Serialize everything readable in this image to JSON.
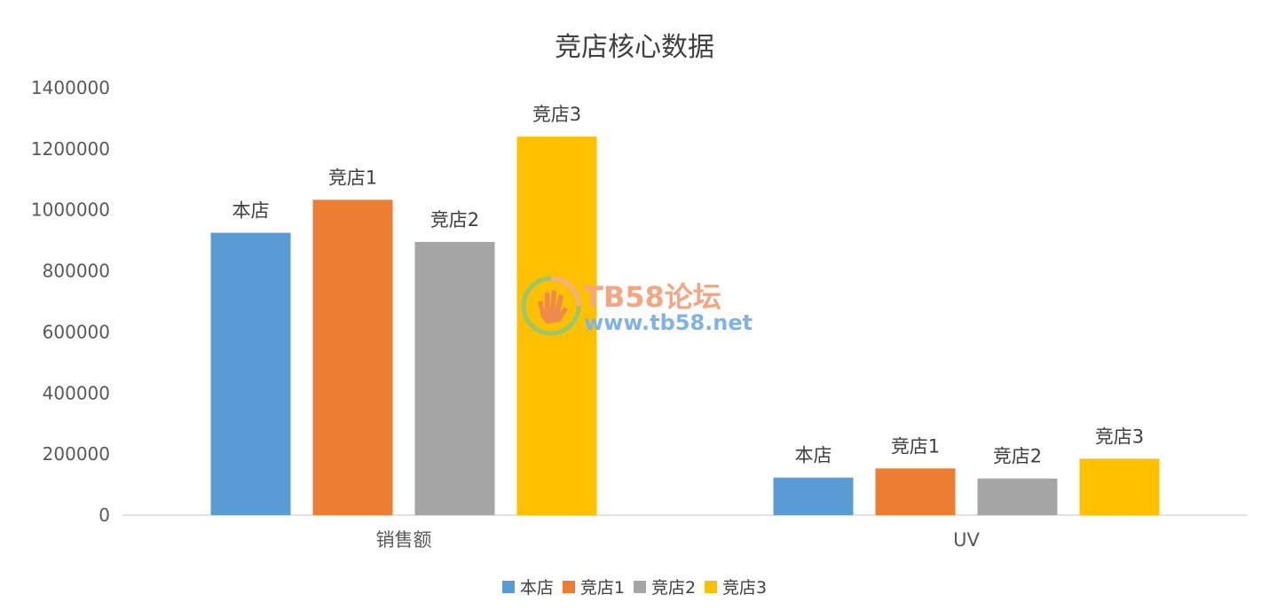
{
  "chart_data": {
    "type": "bar",
    "title": "竞店核心数据",
    "categories": [
      "销售额",
      "UV"
    ],
    "series": [
      {
        "name": "本店",
        "values": [
          925000,
          123000
        ],
        "color": "#5b9bd5"
      },
      {
        "name": "竞店1",
        "values": [
          1033000,
          153000
        ],
        "color": "#ed7d31"
      },
      {
        "name": "竞店2",
        "values": [
          895000,
          120000
        ],
        "color": "#a5a5a5"
      },
      {
        "name": "竞店3",
        "values": [
          1240000,
          185000
        ],
        "color": "#ffc000"
      }
    ],
    "ylim": [
      0,
      1400000
    ],
    "yticks": [
      "0",
      "200000",
      "400000",
      "600000",
      "800000",
      "1000000",
      "1200000",
      "1400000"
    ],
    "grid": false,
    "legend": "bottom",
    "data_labels": "series-name"
  },
  "watermark": {
    "line1": "TB58论坛",
    "line2": "www.tb58.net"
  }
}
